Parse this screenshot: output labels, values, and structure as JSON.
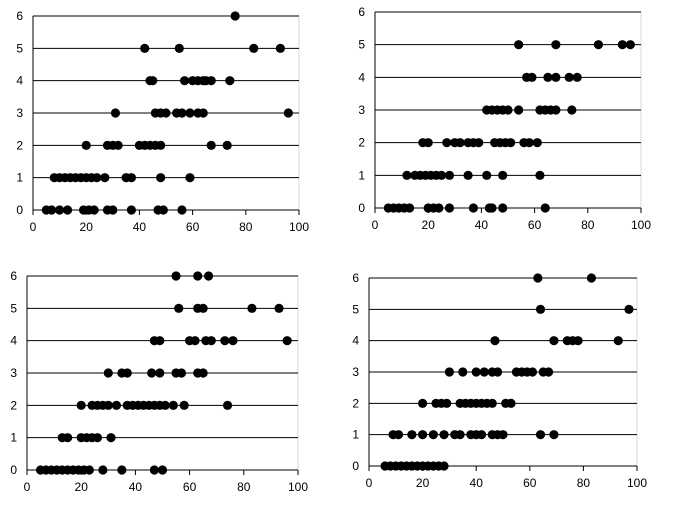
{
  "chart_data": [
    {
      "type": "scatter",
      "xlim": [
        0,
        100
      ],
      "ylim": [
        0,
        6
      ],
      "x_ticks": [
        "0",
        "20",
        "40",
        "60",
        "80",
        "100"
      ],
      "y_ticks": [
        "0",
        "1",
        "2",
        "3",
        "4",
        "5",
        "6"
      ],
      "grid": "horizontal",
      "legend": "none",
      "points": [
        [
          5,
          0
        ],
        [
          7,
          0
        ],
        [
          10,
          0
        ],
        [
          13,
          0
        ],
        [
          19,
          0
        ],
        [
          21,
          0
        ],
        [
          23,
          0
        ],
        [
          28,
          0
        ],
        [
          30,
          0
        ],
        [
          37,
          0
        ],
        [
          47,
          0
        ],
        [
          49,
          0
        ],
        [
          56,
          0
        ],
        [
          8,
          1
        ],
        [
          10,
          1
        ],
        [
          12,
          1
        ],
        [
          14,
          1
        ],
        [
          16,
          1
        ],
        [
          18,
          1
        ],
        [
          20,
          1
        ],
        [
          22,
          1
        ],
        [
          24,
          1
        ],
        [
          27,
          1
        ],
        [
          35,
          1
        ],
        [
          37,
          1
        ],
        [
          48,
          1
        ],
        [
          59,
          1
        ],
        [
          20,
          2
        ],
        [
          28,
          2
        ],
        [
          30,
          2
        ],
        [
          32,
          2
        ],
        [
          40,
          2
        ],
        [
          42,
          2
        ],
        [
          44,
          2
        ],
        [
          46,
          2
        ],
        [
          48,
          2
        ],
        [
          67,
          2
        ],
        [
          73,
          2
        ],
        [
          31,
          3
        ],
        [
          46,
          3
        ],
        [
          48,
          3
        ],
        [
          50,
          3
        ],
        [
          54,
          3
        ],
        [
          56,
          3
        ],
        [
          59,
          3
        ],
        [
          62,
          3
        ],
        [
          64,
          3
        ],
        [
          96,
          3
        ],
        [
          44,
          4
        ],
        [
          45,
          4
        ],
        [
          57,
          4
        ],
        [
          60,
          4
        ],
        [
          62,
          4
        ],
        [
          64,
          4
        ],
        [
          65,
          4
        ],
        [
          67,
          4
        ],
        [
          74,
          4
        ],
        [
          42,
          5
        ],
        [
          55,
          5
        ],
        [
          83,
          5
        ],
        [
          93,
          5
        ],
        [
          76,
          6
        ]
      ]
    },
    {
      "type": "scatter",
      "xlim": [
        0,
        100
      ],
      "ylim": [
        0,
        6
      ],
      "x_ticks": [
        "0",
        "20",
        "40",
        "60",
        "80",
        "100"
      ],
      "y_ticks": [
        "0",
        "1",
        "2",
        "3",
        "4",
        "5",
        "6"
      ],
      "grid": "horizontal",
      "legend": "none",
      "points": [
        [
          5,
          0
        ],
        [
          7,
          0
        ],
        [
          9,
          0
        ],
        [
          11,
          0
        ],
        [
          13,
          0
        ],
        [
          20,
          0
        ],
        [
          22,
          0
        ],
        [
          24,
          0
        ],
        [
          28,
          0
        ],
        [
          37,
          0
        ],
        [
          43,
          0
        ],
        [
          44,
          0
        ],
        [
          48,
          0
        ],
        [
          64,
          0
        ],
        [
          12,
          1
        ],
        [
          15,
          1
        ],
        [
          17,
          1
        ],
        [
          19,
          1
        ],
        [
          21,
          1
        ],
        [
          23,
          1
        ],
        [
          25,
          1
        ],
        [
          28,
          1
        ],
        [
          35,
          1
        ],
        [
          42,
          1
        ],
        [
          48,
          1
        ],
        [
          62,
          1
        ],
        [
          18,
          2
        ],
        [
          20,
          2
        ],
        [
          27,
          2
        ],
        [
          30,
          2
        ],
        [
          32,
          2
        ],
        [
          35,
          2
        ],
        [
          37,
          2
        ],
        [
          39,
          2
        ],
        [
          45,
          2
        ],
        [
          47,
          2
        ],
        [
          49,
          2
        ],
        [
          51,
          2
        ],
        [
          56,
          2
        ],
        [
          58,
          2
        ],
        [
          61,
          2
        ],
        [
          42,
          3
        ],
        [
          44,
          3
        ],
        [
          46,
          3
        ],
        [
          48,
          3
        ],
        [
          50,
          3
        ],
        [
          54,
          3
        ],
        [
          62,
          3
        ],
        [
          64,
          3
        ],
        [
          66,
          3
        ],
        [
          68,
          3
        ],
        [
          74,
          3
        ],
        [
          57,
          4
        ],
        [
          59,
          4
        ],
        [
          65,
          4
        ],
        [
          68,
          4
        ],
        [
          73,
          4
        ],
        [
          76,
          4
        ],
        [
          54,
          5
        ],
        [
          68,
          5
        ],
        [
          84,
          5
        ],
        [
          93,
          5
        ],
        [
          96,
          5
        ]
      ]
    },
    {
      "type": "scatter",
      "xlim": [
        0,
        100
      ],
      "ylim": [
        0,
        6
      ],
      "x_ticks": [
        "0",
        "20",
        "40",
        "60",
        "80",
        "100"
      ],
      "y_ticks": [
        "0",
        "1",
        "2",
        "3",
        "4",
        "5",
        "6"
      ],
      "grid": "horizontal",
      "legend": "none",
      "points": [
        [
          5,
          0
        ],
        [
          7,
          0
        ],
        [
          9,
          0
        ],
        [
          11,
          0
        ],
        [
          13,
          0
        ],
        [
          15,
          0
        ],
        [
          17,
          0
        ],
        [
          19,
          0
        ],
        [
          21,
          0
        ],
        [
          23,
          0
        ],
        [
          28,
          0
        ],
        [
          35,
          0
        ],
        [
          47,
          0
        ],
        [
          50,
          0
        ],
        [
          13,
          1
        ],
        [
          15,
          1
        ],
        [
          20,
          1
        ],
        [
          22,
          1
        ],
        [
          24,
          1
        ],
        [
          26,
          1
        ],
        [
          31,
          1
        ],
        [
          20,
          2
        ],
        [
          24,
          2
        ],
        [
          26,
          2
        ],
        [
          28,
          2
        ],
        [
          30,
          2
        ],
        [
          33,
          2
        ],
        [
          37,
          2
        ],
        [
          39,
          2
        ],
        [
          41,
          2
        ],
        [
          43,
          2
        ],
        [
          45,
          2
        ],
        [
          47,
          2
        ],
        [
          49,
          2
        ],
        [
          51,
          2
        ],
        [
          54,
          2
        ],
        [
          58,
          2
        ],
        [
          74,
          2
        ],
        [
          30,
          3
        ],
        [
          35,
          3
        ],
        [
          37,
          3
        ],
        [
          46,
          3
        ],
        [
          49,
          3
        ],
        [
          55,
          3
        ],
        [
          57,
          3
        ],
        [
          63,
          3
        ],
        [
          65,
          3
        ],
        [
          47,
          4
        ],
        [
          49,
          4
        ],
        [
          60,
          4
        ],
        [
          62,
          4
        ],
        [
          66,
          4
        ],
        [
          68,
          4
        ],
        [
          73,
          4
        ],
        [
          76,
          4
        ],
        [
          96,
          4
        ],
        [
          56,
          5
        ],
        [
          63,
          5
        ],
        [
          65,
          5
        ],
        [
          83,
          5
        ],
        [
          93,
          5
        ],
        [
          55,
          6
        ],
        [
          63,
          6
        ],
        [
          67,
          6
        ]
      ]
    },
    {
      "type": "scatter",
      "xlim": [
        0,
        100
      ],
      "ylim": [
        0,
        6
      ],
      "x_ticks": [
        "0",
        "20",
        "40",
        "60",
        "80",
        "100"
      ],
      "y_ticks": [
        "0",
        "1",
        "2",
        "3",
        "4",
        "5",
        "6"
      ],
      "grid": "horizontal",
      "legend": "none",
      "points": [
        [
          6,
          0
        ],
        [
          8,
          0
        ],
        [
          10,
          0
        ],
        [
          12,
          0
        ],
        [
          14,
          0
        ],
        [
          16,
          0
        ],
        [
          18,
          0
        ],
        [
          20,
          0
        ],
        [
          22,
          0
        ],
        [
          24,
          0
        ],
        [
          26,
          0
        ],
        [
          28,
          0
        ],
        [
          9,
          1
        ],
        [
          11,
          1
        ],
        [
          16,
          1
        ],
        [
          20,
          1
        ],
        [
          24,
          1
        ],
        [
          28,
          1
        ],
        [
          32,
          1
        ],
        [
          34,
          1
        ],
        [
          38,
          1
        ],
        [
          40,
          1
        ],
        [
          42,
          1
        ],
        [
          46,
          1
        ],
        [
          48,
          1
        ],
        [
          50,
          1
        ],
        [
          64,
          1
        ],
        [
          69,
          1
        ],
        [
          20,
          2
        ],
        [
          25,
          2
        ],
        [
          27,
          2
        ],
        [
          29,
          2
        ],
        [
          34,
          2
        ],
        [
          36,
          2
        ],
        [
          38,
          2
        ],
        [
          40,
          2
        ],
        [
          42,
          2
        ],
        [
          44,
          2
        ],
        [
          46,
          2
        ],
        [
          51,
          2
        ],
        [
          53,
          2
        ],
        [
          30,
          3
        ],
        [
          35,
          3
        ],
        [
          40,
          3
        ],
        [
          43,
          3
        ],
        [
          46,
          3
        ],
        [
          48,
          3
        ],
        [
          55,
          3
        ],
        [
          57,
          3
        ],
        [
          59,
          3
        ],
        [
          61,
          3
        ],
        [
          65,
          3
        ],
        [
          67,
          3
        ],
        [
          47,
          4
        ],
        [
          69,
          4
        ],
        [
          74,
          4
        ],
        [
          76,
          4
        ],
        [
          78,
          4
        ],
        [
          93,
          4
        ],
        [
          64,
          5
        ],
        [
          97,
          5
        ],
        [
          63,
          6
        ],
        [
          83,
          6
        ]
      ]
    }
  ]
}
